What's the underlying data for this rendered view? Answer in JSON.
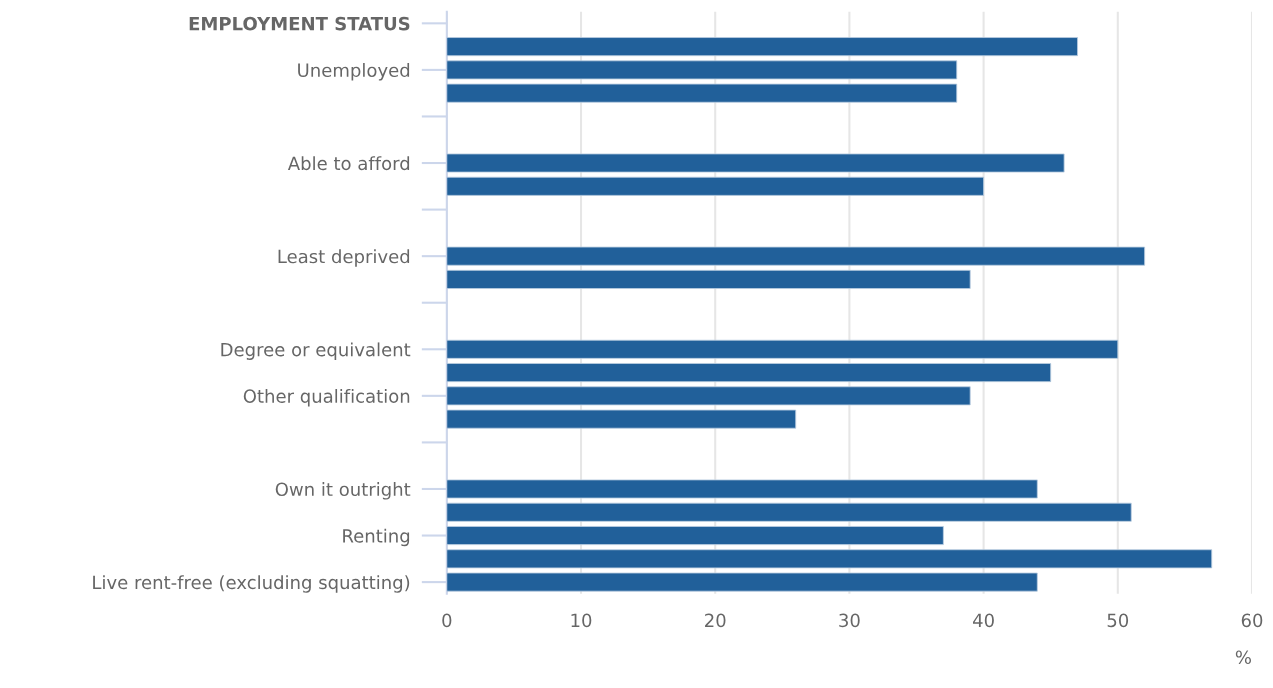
{
  "chart_data": {
    "type": "bar",
    "orientation": "horizontal",
    "xlabel": "%",
    "categories": [
      "EMPLOYMENT STATUS",
      null,
      "Unemployed",
      null,
      null,
      null,
      "Able to afford",
      null,
      null,
      null,
      "Least deprived",
      null,
      null,
      null,
      "Degree or equivalent",
      null,
      "Other qualification",
      null,
      null,
      null,
      "Own it outright",
      null,
      "Renting",
      null,
      "Live rent-free (excluding squatting)"
    ],
    "values": [
      null,
      47,
      38,
      38,
      null,
      null,
      46,
      40,
      null,
      null,
      52,
      39,
      null,
      null,
      50,
      45,
      39,
      26,
      null,
      null,
      44,
      51,
      37,
      57,
      44
    ],
    "color": "#21609a",
    "xlim": [
      0,
      60
    ],
    "xticks": [
      0,
      10,
      20,
      30,
      40,
      50,
      60
    ],
    "grid": "x"
  }
}
